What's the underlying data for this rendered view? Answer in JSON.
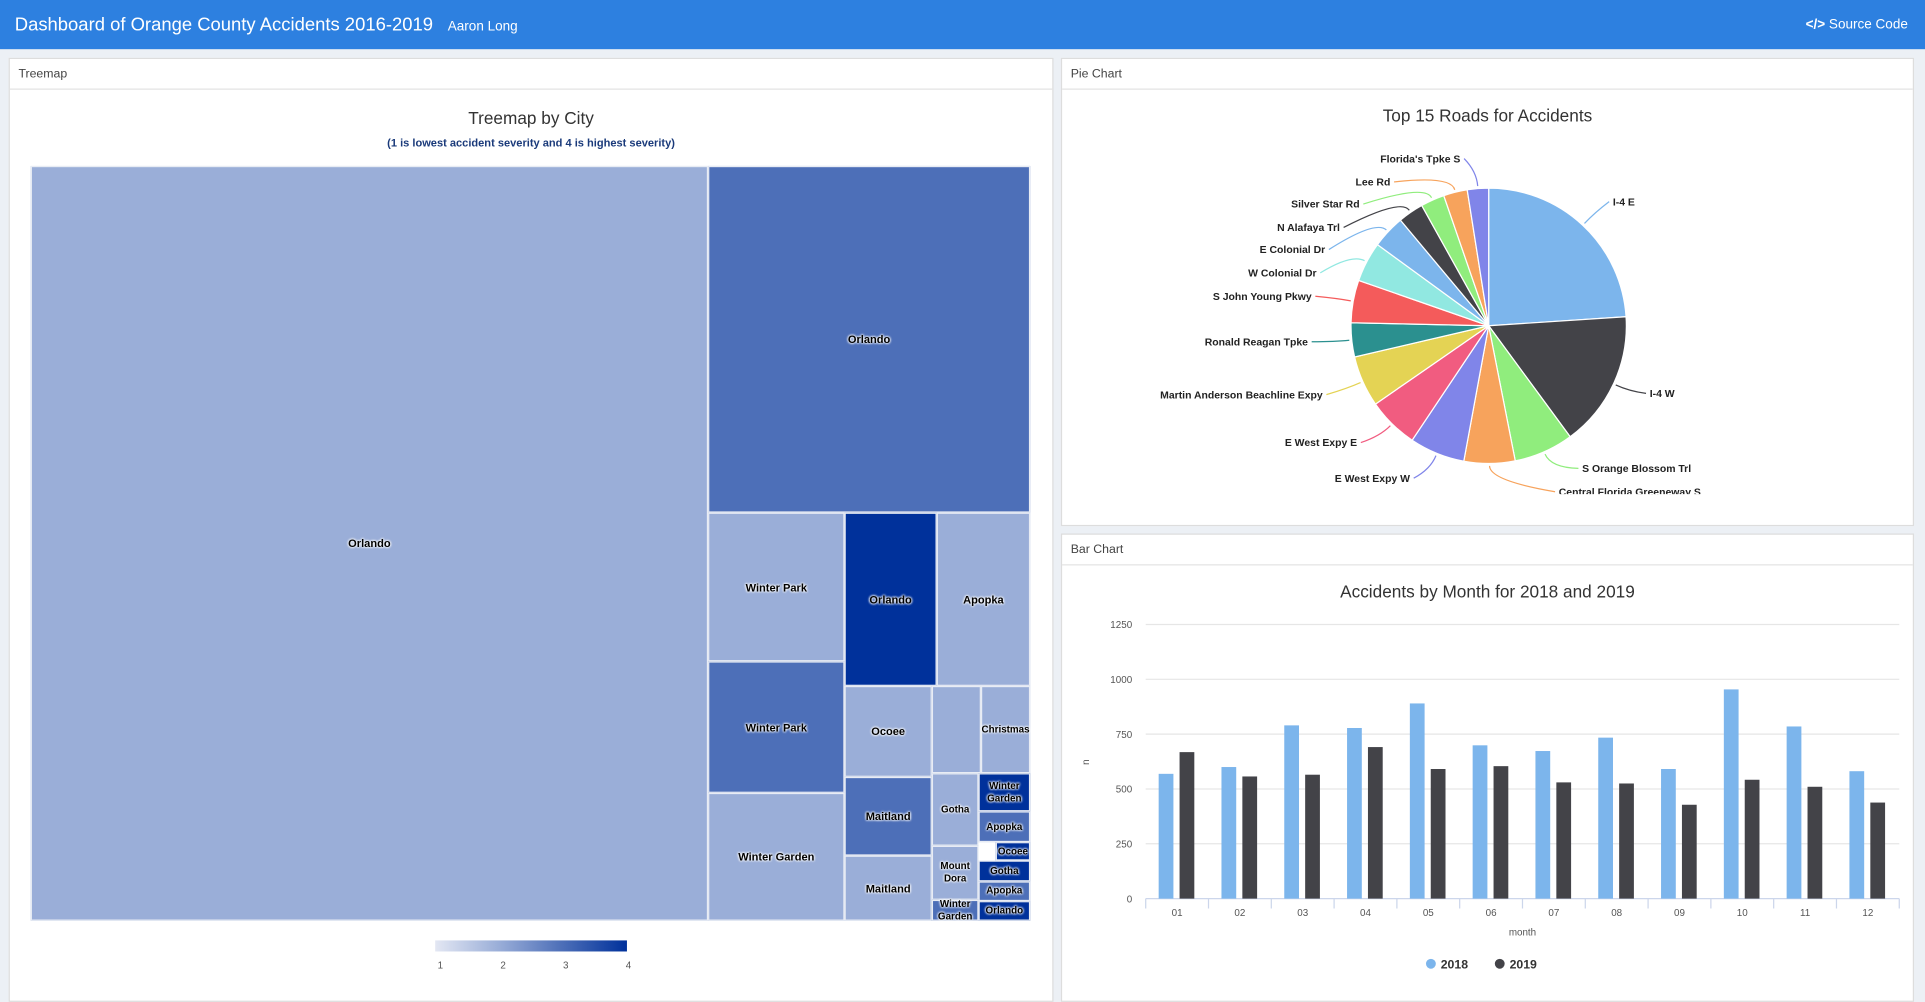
{
  "header": {
    "title": "Dashboard of Orange County Accidents 2016-2019",
    "author": "Aaron Long",
    "source_code": "Source Code",
    "color": "#2d80e0"
  },
  "treemap_panel": {
    "header": "Treemap",
    "title": "Treemap by City",
    "subtitle": "(1 is lowest accident severity and 4 is highest severity)",
    "cells": [
      {
        "city": "Orlando",
        "severity": 1
      },
      {
        "city": "Orlando",
        "severity": 2
      },
      {
        "city": "Winter Park",
        "severity": 1
      },
      {
        "city": "Orlando",
        "severity": 4
      },
      {
        "city": "Apopka",
        "severity": 1
      },
      {
        "city": "Winter Park",
        "severity": 2
      },
      {
        "city": "Winter Garden",
        "severity": 1
      },
      {
        "city": "Ocoee",
        "severity": 1
      },
      {
        "city": "Maitland",
        "severity": 2
      },
      {
        "city": "Maitland",
        "severity": 1
      },
      {
        "city": "",
        "severity": 1
      },
      {
        "city": "Christmas",
        "severity": 1
      },
      {
        "city": "Gotha",
        "severity": 1
      },
      {
        "city": "Mount Dora",
        "severity": 1
      },
      {
        "city": "Winter Garden",
        "severity": 2
      },
      {
        "city": "Winter Garden",
        "severity": 4
      },
      {
        "city": "Apopka",
        "severity": 2
      },
      {
        "city": "Ocoee",
        "severity": 4
      },
      {
        "city": "Gotha",
        "severity": 4
      },
      {
        "city": "Apopka",
        "severity": 2
      },
      {
        "city": "Orlando",
        "severity": 4
      }
    ],
    "legend_ticks": [
      "1",
      "2",
      "3",
      "4"
    ],
    "severity_colors": {
      "1": "#9aaed8",
      "2": "#4d6fb8",
      "3": "#2a4fa8",
      "4": "#00319b"
    }
  },
  "pie_panel": {
    "header": "Pie Chart",
    "title": "Top 15 Roads for Accidents"
  },
  "bar_panel": {
    "header": "Bar Chart",
    "title": "Accidents by Month for 2018 and 2019"
  },
  "chart_data": [
    {
      "type": "pie",
      "title": "Top 15 Roads for Accidents",
      "labels": [
        "I-4 E",
        "I-4 W",
        "S Orange Blossom Trl",
        "Central Florida Greeneway S",
        "E West Expy W",
        "E West Expy E",
        "Martin Anderson Beachline Expy",
        "Ronald Reagan Tpke",
        "S John Young Pkwy",
        "W Colonial Dr",
        "E Colonial Dr",
        "N Alafaya Trl",
        "Silver Star Rd",
        "Lee Rd",
        "Florida's Tpke S"
      ],
      "values": [
        24,
        16,
        7,
        6,
        6.5,
        6,
        6,
        4,
        5,
        4.7,
        3.9,
        3,
        2.8,
        2.8,
        2.5
      ],
      "colors": [
        "#7cb5ec",
        "#434348",
        "#90ed7d",
        "#f7a35c",
        "#8085e9",
        "#f15c80",
        "#e4d354",
        "#2b908f",
        "#f45b5b",
        "#91e8e1",
        "#7cb5ec",
        "#434348",
        "#90ed7d",
        "#f7a35c",
        "#8085e9"
      ]
    },
    {
      "type": "bar",
      "title": "Accidents by Month for 2018 and 2019",
      "xlabel": "month",
      "ylabel": "n",
      "categories": [
        "01",
        "02",
        "03",
        "04",
        "05",
        "06",
        "07",
        "08",
        "09",
        "10",
        "11",
        "12"
      ],
      "ylim": [
        0,
        1250
      ],
      "yticks": [
        "0",
        "250",
        "500",
        "750",
        "1000",
        "1250"
      ],
      "grid": true,
      "legend": "bottom",
      "series": [
        {
          "name": "2018",
          "color": "#7cb5ec",
          "values": [
            569,
            600,
            790,
            778,
            890,
            699,
            673,
            734,
            591,
            954,
            785,
            581
          ]
        },
        {
          "name": "2019",
          "color": "#434348",
          "values": [
            668,
            557,
            565,
            691,
            591,
            604,
            530,
            525,
            428,
            542,
            510,
            438
          ]
        }
      ]
    }
  ]
}
